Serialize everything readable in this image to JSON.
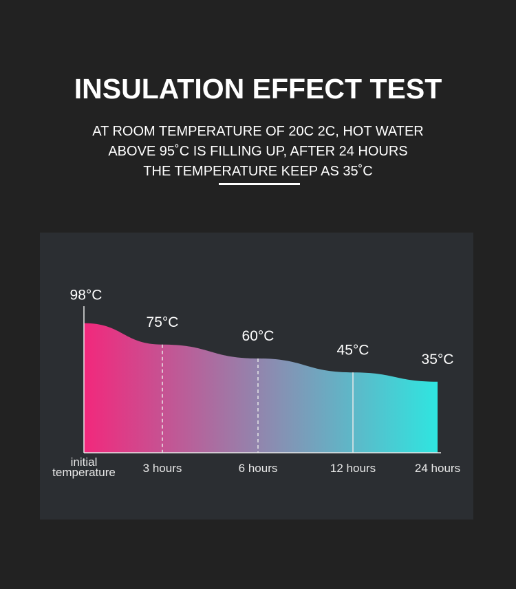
{
  "chart_data": {
    "type": "area",
    "title": "INSULATION EFFECT TEST",
    "subtitle": [
      "AT ROOM TEMPERATURE OF 20C 2C, HOT WATER",
      "ABOVE 95˚C IS FILLING UP, AFTER 24 HOURS",
      "THE TEMPERATURE KEEP AS 35˚C"
    ],
    "categories": [
      "initial temperature",
      "3 hours",
      "6 hours",
      "12 hours",
      "24 hours"
    ],
    "values": [
      98,
      75,
      60,
      45,
      35
    ],
    "value_labels": [
      "98°C",
      "75°C",
      "60°C",
      "45°C",
      "35°C"
    ],
    "colors": [
      "#f2287c",
      "#2fe5e0"
    ]
  }
}
